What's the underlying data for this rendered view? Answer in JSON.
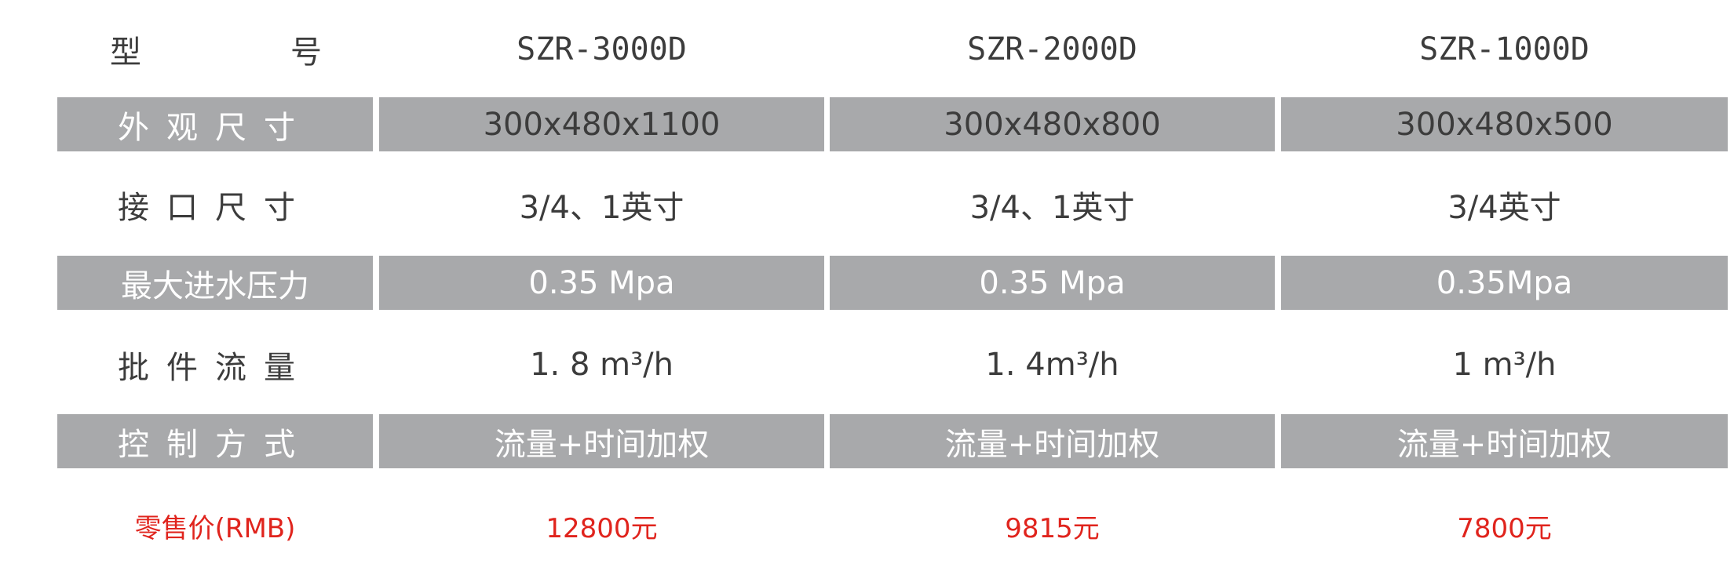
{
  "table": {
    "header": {
      "label_left": "型",
      "label_right": "号",
      "models": [
        "SZR-3000D",
        "SZR-2000D",
        "SZR-1000D"
      ]
    },
    "rows": [
      {
        "label": "外观尺寸",
        "values": [
          "300x480x1100",
          "300x480x800",
          "300x480x500"
        ]
      },
      {
        "label": "接口尺寸",
        "values": [
          "3/4、1英寸",
          "3/4、1英寸",
          "3/4英寸"
        ]
      },
      {
        "label": "最大进水压力",
        "values": [
          "0.35 Mpa",
          "0.35 Mpa",
          "0.35Mpa"
        ]
      },
      {
        "label": "批件流量",
        "values": [
          "1. 8 m³/h",
          "1. 4m³/h",
          "1 m³/h"
        ]
      },
      {
        "label": "控制方式",
        "values": [
          "流量+时间加权",
          "流量+时间加权",
          "流量+时间加权"
        ]
      }
    ],
    "price": {
      "label": "零售价(RMB)",
      "values": [
        "12800元",
        "9815元",
        "7800元"
      ]
    }
  },
  "colors": {
    "band": "#a8a9ab",
    "text": "#3c3c3c",
    "price": "#e0241d"
  }
}
